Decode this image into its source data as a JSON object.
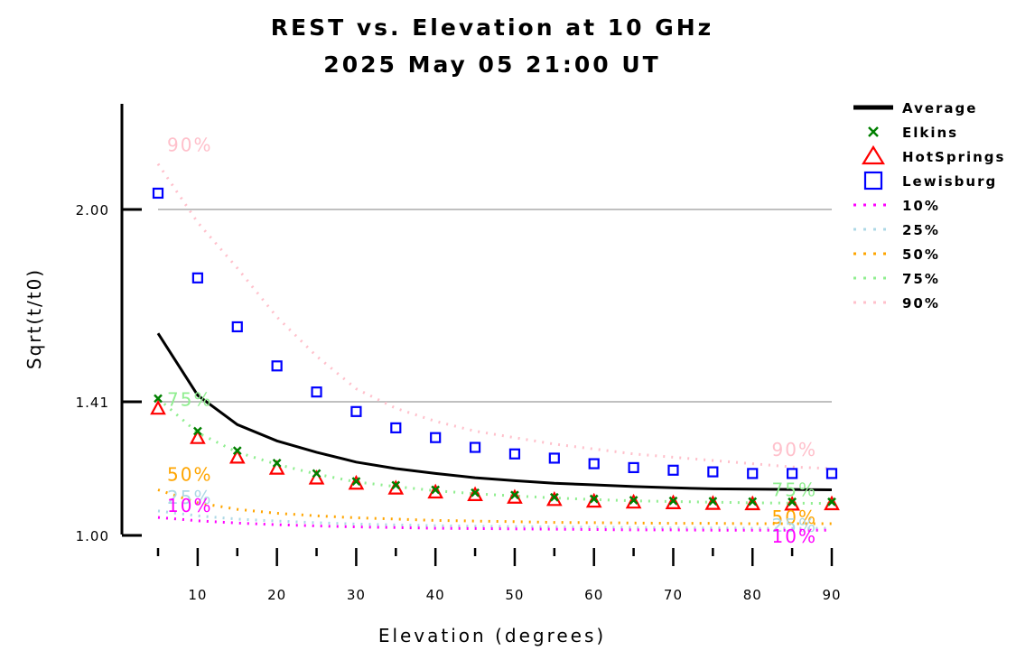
{
  "chart_data": {
    "type": "line",
    "title": "REST vs. Elevation at 10 GHz",
    "subtitle": "2025 May 05 21:00 UT",
    "xlabel": "Elevation (degrees)",
    "ylabel": "Sqrt(t/t0)",
    "xlim": [
      5,
      90
    ],
    "ylim": [
      1.0,
      2.2
    ],
    "x_ticks": [
      10,
      20,
      30,
      40,
      50,
      60,
      70,
      80,
      90
    ],
    "y_ticks": [
      {
        "value": 1.0,
        "label": "1.00"
      },
      {
        "value": 1.41,
        "label": "1.41"
      },
      {
        "value": 2.0,
        "label": "2.00"
      }
    ],
    "grid_lines": [
      1.41,
      2.0
    ],
    "legend_position": "right",
    "x": [
      5,
      10,
      15,
      20,
      25,
      30,
      35,
      40,
      45,
      50,
      55,
      60,
      65,
      70,
      75,
      80,
      85,
      90
    ],
    "series": [
      {
        "name": "Average",
        "style": "line",
        "color": "#000000",
        "values": [
          1.62,
          1.43,
          1.34,
          1.29,
          1.255,
          1.225,
          1.205,
          1.19,
          1.177,
          1.168,
          1.16,
          1.155,
          1.15,
          1.146,
          1.143,
          1.142,
          1.141,
          1.14
        ]
      },
      {
        "name": "Elkins",
        "style": "x",
        "color": "#008000",
        "values": [
          1.42,
          1.32,
          1.26,
          1.222,
          1.19,
          1.166,
          1.154,
          1.14,
          1.131,
          1.124,
          1.117,
          1.112,
          1.108,
          1.106,
          1.105,
          1.104,
          1.103,
          1.103
        ]
      },
      {
        "name": "HotSprings",
        "style": "triangle",
        "color": "#ff0000",
        "values": [
          1.39,
          1.3,
          1.24,
          1.206,
          1.176,
          1.16,
          1.145,
          1.133,
          1.125,
          1.117,
          1.11,
          1.105,
          1.102,
          1.1,
          1.098,
          1.097,
          1.096,
          1.097
        ]
      },
      {
        "name": "Lewisburg",
        "style": "square",
        "color": "#0000ff",
        "values": [
          2.05,
          1.79,
          1.64,
          1.52,
          1.44,
          1.38,
          1.33,
          1.3,
          1.27,
          1.25,
          1.237,
          1.22,
          1.208,
          1.2,
          1.195,
          1.19,
          1.19,
          1.19
        ]
      },
      {
        "name": "10%",
        "style": "dotted",
        "color": "#ff00ff",
        "values": [
          1.055,
          1.045,
          1.038,
          1.033,
          1.029,
          1.026,
          1.024,
          1.022,
          1.021,
          1.02,
          1.019,
          1.018,
          1.017,
          1.017,
          1.016,
          1.016,
          1.016,
          1.016
        ]
      },
      {
        "name": "25%",
        "style": "dotted",
        "color": "#add8e6",
        "values": [
          1.075,
          1.06,
          1.05,
          1.044,
          1.039,
          1.035,
          1.032,
          1.03,
          1.028,
          1.027,
          1.026,
          1.025,
          1.024,
          1.023,
          1.023,
          1.022,
          1.022,
          1.022
        ]
      },
      {
        "name": "50%",
        "style": "dotted",
        "color": "#ffa500",
        "values": [
          1.14,
          1.1,
          1.08,
          1.068,
          1.06,
          1.054,
          1.05,
          1.046,
          1.044,
          1.042,
          1.04,
          1.039,
          1.038,
          1.037,
          1.037,
          1.036,
          1.036,
          1.036
        ]
      },
      {
        "name": "75%",
        "style": "dotted",
        "color": "#90ee90",
        "values": [
          1.42,
          1.315,
          1.255,
          1.218,
          1.188,
          1.164,
          1.15,
          1.137,
          1.128,
          1.121,
          1.115,
          1.11,
          1.106,
          1.104,
          1.102,
          1.1,
          1.099,
          1.098
        ]
      },
      {
        "name": "90%",
        "style": "dotted",
        "color": "#ffc0cb",
        "values": [
          2.14,
          1.96,
          1.82,
          1.67,
          1.55,
          1.45,
          1.39,
          1.35,
          1.32,
          1.3,
          1.28,
          1.265,
          1.25,
          1.24,
          1.23,
          1.22,
          1.21,
          1.205
        ]
      }
    ],
    "annotations": [
      {
        "text": "90%",
        "series": "90%",
        "side": "start"
      },
      {
        "text": "90%",
        "series": "90%",
        "side": "end"
      },
      {
        "text": "75%",
        "series": "75%",
        "side": "start"
      },
      {
        "text": "75%",
        "series": "75%",
        "side": "end"
      },
      {
        "text": "50%",
        "series": "50%",
        "side": "start"
      },
      {
        "text": "50%",
        "series": "50%",
        "side": "end"
      },
      {
        "text": "25%",
        "series": "25%",
        "side": "start"
      },
      {
        "text": "25%",
        "series": "25%",
        "side": "end"
      },
      {
        "text": "10%",
        "series": "10%",
        "side": "start"
      },
      {
        "text": "10%",
        "series": "10%",
        "side": "end"
      }
    ]
  }
}
